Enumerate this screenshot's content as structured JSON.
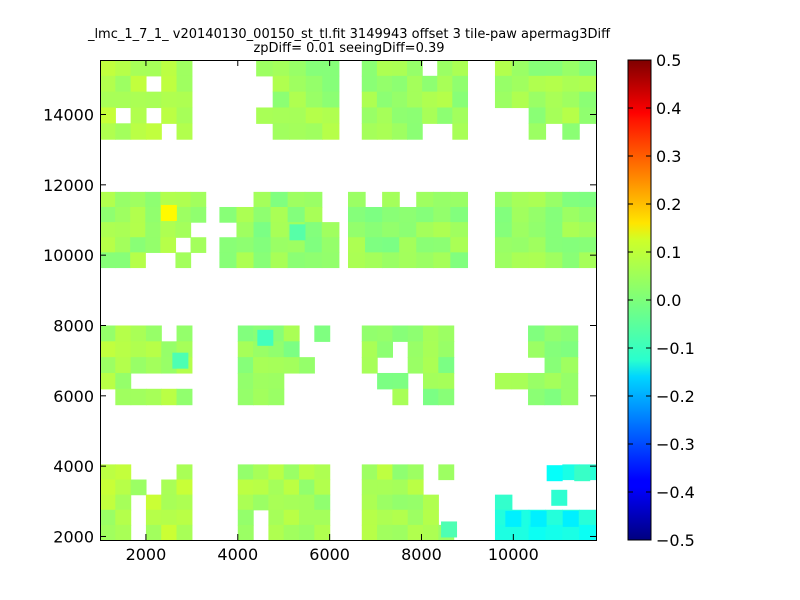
{
  "chart_data": {
    "type": "heatmap",
    "title_line1": "_lmc_1_7_1_ v20140130_00150_st_tl.fit 3149943 offset 3 tile-paw apermag3Diff",
    "title_line2": "zpDiff= 0.01 seeingDiff=0.39",
    "xlim": [
      1000,
      11800
    ],
    "ylim": [
      1900,
      15550
    ],
    "x_ticks": [
      2000,
      4000,
      6000,
      8000,
      10000
    ],
    "x_tick_labels": [
      "2000",
      "4000",
      "6000",
      "8000",
      "10000"
    ],
    "y_ticks": [
      2000,
      4000,
      6000,
      8000,
      10000,
      12000,
      14000
    ],
    "y_tick_labels": [
      "2000",
      "4000",
      "6000",
      "8000",
      "10000",
      "12000",
      "14000"
    ],
    "colorbar": {
      "colormap": "jet",
      "vmin": -0.5,
      "vmax": 0.5,
      "ticks": [
        0.5,
        0.4,
        0.3,
        0.2,
        0.1,
        0.0,
        -0.1,
        -0.2,
        -0.3,
        -0.4,
        -0.5
      ],
      "tick_labels": [
        "0.5",
        "0.4",
        "0.3",
        "0.2",
        "0.1",
        "0.0",
        "−0.1",
        "−0.2",
        "−0.3",
        "−0.4",
        "−0.5"
      ]
    },
    "blocks": [
      {
        "x": [
          1000,
          3000
        ],
        "y": [
          13300,
          15550
        ],
        "value": 0.05,
        "holes": [
          [
            1,
            3
          ],
          [
            3,
            1
          ],
          [
            3,
            3
          ],
          [
            4,
            4
          ]
        ]
      },
      {
        "x": [
          4400,
          6200
        ],
        "y": [
          13300,
          15550
        ],
        "value": 0.03,
        "holes": [
          [
            1,
            0
          ],
          [
            2,
            0
          ],
          [
            4,
            0
          ]
        ]
      },
      {
        "x": [
          6700,
          9000
        ],
        "y": [
          13300,
          15550
        ],
        "value": 0.03,
        "holes": [
          [
            0,
            4
          ],
          [
            4,
            4
          ],
          [
            4,
            5
          ]
        ]
      },
      {
        "x": [
          9600,
          11800
        ],
        "y": [
          13300,
          15550
        ],
        "value": 0.03,
        "holes": [
          [
            3,
            0
          ],
          [
            3,
            1
          ],
          [
            4,
            0
          ],
          [
            4,
            1
          ],
          [
            4,
            3
          ],
          [
            4,
            5
          ]
        ]
      },
      {
        "x": [
          1000,
          3300
        ],
        "y": [
          9650,
          11800
        ],
        "value": 0.03,
        "holes": [
          [
            2,
            6
          ],
          [
            3,
            5
          ],
          [
            3,
            7
          ],
          [
            4,
            3
          ],
          [
            4,
            4
          ],
          [
            4,
            6
          ],
          [
            4,
            7
          ]
        ]
      },
      {
        "x": [
          3600,
          6200
        ],
        "y": [
          9650,
          11800
        ],
        "value": 0.02,
        "holes": [
          [
            0,
            0
          ],
          [
            0,
            1
          ],
          [
            0,
            6
          ],
          [
            1,
            6
          ],
          [
            2,
            0
          ]
        ]
      },
      {
        "x": [
          6400,
          9000
        ],
        "y": [
          9650,
          11800
        ],
        "value": 0.02,
        "holes": [
          [
            0,
            1
          ],
          [
            0,
            3
          ]
        ]
      },
      {
        "x": [
          9600,
          11800
        ],
        "y": [
          9650,
          11800
        ],
        "value": 0.02,
        "holes": []
      },
      {
        "x": [
          1000,
          3000
        ],
        "y": [
          5750,
          8000
        ],
        "value": 0.04,
        "holes": [
          [
            0,
            4
          ],
          [
            3,
            2
          ],
          [
            3,
            3
          ],
          [
            3,
            4
          ],
          [
            3,
            5
          ],
          [
            4,
            0
          ]
        ]
      },
      {
        "x": [
          4000,
          6000
        ],
        "y": [
          5750,
          8000
        ],
        "value": 0.02,
        "holes": [
          [
            0,
            4
          ],
          [
            1,
            4
          ],
          [
            1,
            5
          ],
          [
            2,
            5
          ],
          [
            3,
            3
          ],
          [
            3,
            4
          ],
          [
            3,
            5
          ],
          [
            4,
            3
          ],
          [
            4,
            4
          ],
          [
            4,
            5
          ]
        ]
      },
      {
        "x": [
          6700,
          8700
        ],
        "y": [
          5750,
          8000
        ],
        "value": 0.02,
        "holes": [
          [
            1,
            2
          ],
          [
            2,
            1
          ],
          [
            3,
            0
          ],
          [
            3,
            3
          ],
          [
            4,
            0
          ],
          [
            4,
            1
          ],
          [
            4,
            3
          ],
          [
            2,
            2
          ]
        ]
      },
      {
        "x": [
          9600,
          11400
        ],
        "y": [
          5750,
          8000
        ],
        "value": 0.02,
        "holes": [
          [
            0,
            0
          ],
          [
            0,
            1
          ],
          [
            1,
            0
          ],
          [
            1,
            1
          ],
          [
            2,
            0
          ],
          [
            2,
            1
          ],
          [
            2,
            2
          ],
          [
            4,
            0
          ],
          [
            4,
            1
          ],
          [
            2,
            5
          ],
          [
            3,
            5
          ],
          [
            4,
            5
          ]
        ]
      },
      {
        "x": [
          1000,
          3000
        ],
        "y": [
          1900,
          4050
        ],
        "value": 0.05,
        "holes": [
          [
            0,
            2
          ],
          [
            0,
            3
          ],
          [
            0,
            4
          ],
          [
            1,
            3
          ],
          [
            2,
            2
          ],
          [
            3,
            2
          ],
          [
            4,
            2
          ]
        ]
      },
      {
        "x": [
          4000,
          6000
        ],
        "y": [
          1900,
          4050
        ],
        "value": 0.04,
        "holes": [
          [
            3,
            1
          ],
          [
            4,
            1
          ]
        ]
      },
      {
        "x": [
          6700,
          8700
        ],
        "y": [
          1900,
          4050
        ],
        "value": 0.04,
        "holes": [
          [
            0,
            4
          ],
          [
            1,
            4
          ],
          [
            1,
            5
          ],
          [
            2,
            5
          ],
          [
            3,
            5
          ]
        ]
      },
      {
        "x": [
          9600,
          11800
        ],
        "y": [
          1900,
          4050
        ],
        "value": -0.1,
        "holes": [
          [
            0,
            0
          ],
          [
            0,
            1
          ],
          [
            0,
            2
          ],
          [
            0,
            3
          ],
          [
            1,
            0
          ],
          [
            1,
            1
          ],
          [
            1,
            2
          ],
          [
            1,
            3
          ],
          [
            1,
            4
          ],
          [
            1,
            5
          ],
          [
            2,
            1
          ],
          [
            2,
            2
          ],
          [
            2,
            3
          ],
          [
            2,
            4
          ],
          [
            2,
            5
          ]
        ]
      }
    ],
    "special_cells": [
      {
        "x": 2500,
        "y": 11200,
        "value": 0.13
      },
      {
        "x": 10550,
        "y": 2500,
        "value": -0.14
      },
      {
        "x": 11250,
        "y": 2500,
        "value": -0.14
      },
      {
        "x": 10000,
        "y": 2500,
        "value": -0.14
      },
      {
        "x": 8600,
        "y": 2200,
        "value": -0.05
      },
      {
        "x": 11500,
        "y": 3800,
        "value": -0.07
      },
      {
        "x": 10900,
        "y": 3800,
        "value": -0.12
      },
      {
        "x": 11000,
        "y": 3100,
        "value": -0.08
      },
      {
        "x": 4600,
        "y": 7650,
        "value": -0.06
      },
      {
        "x": 2750,
        "y": 7000,
        "value": -0.05
      },
      {
        "x": 5300,
        "y": 10650,
        "value": -0.04
      }
    ]
  }
}
